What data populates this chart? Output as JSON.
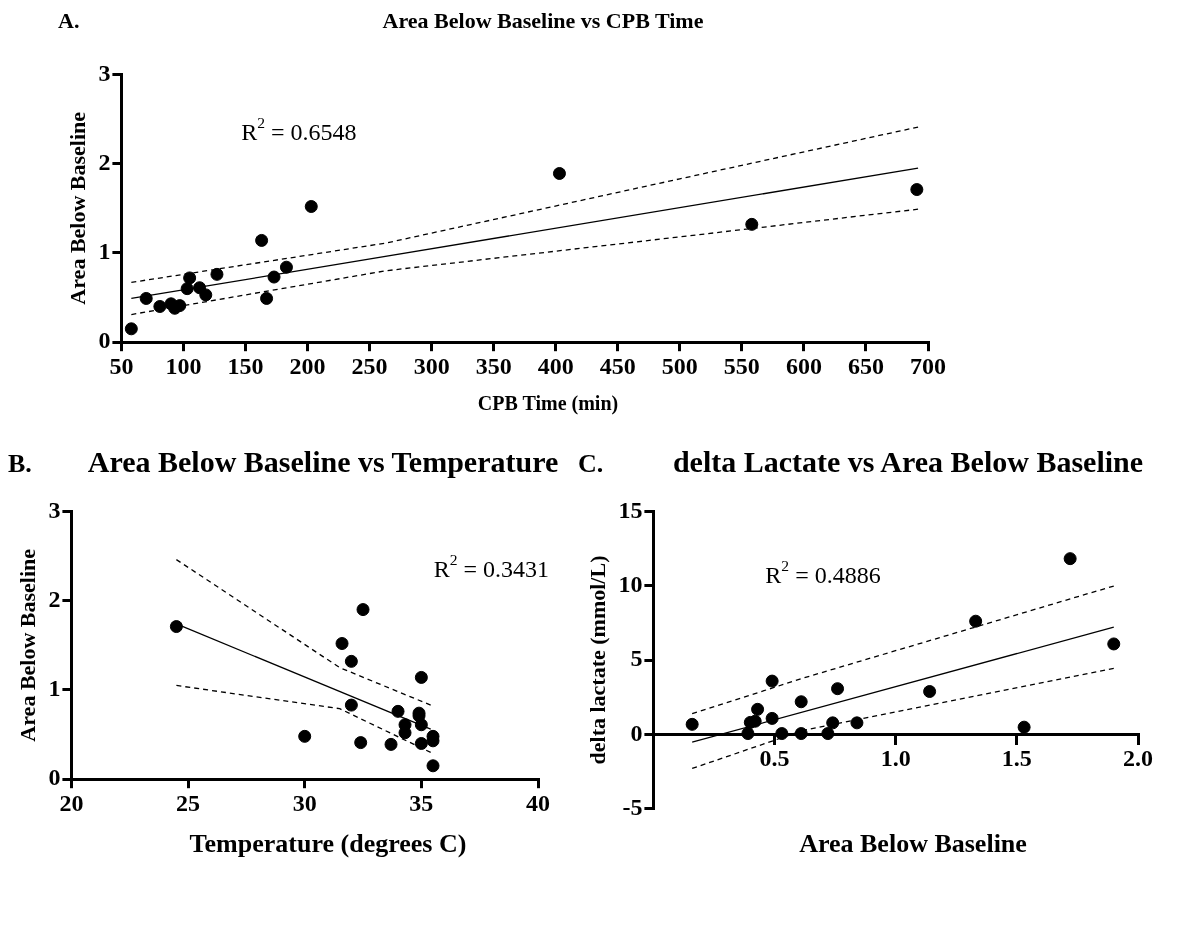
{
  "chart_data": [
    {
      "type": "scatter",
      "title": "Area Below Baseline vs CPB Time",
      "xlabel": "CPB Time (min)",
      "ylabel": "Area Below Baseline",
      "annotations": [
        "A.",
        "R$^{2}$ = 0.6548"
      ],
      "xlim": [
        50,
        700
      ],
      "xticks": [
        50,
        100,
        150,
        200,
        250,
        300,
        350,
        400,
        450,
        500,
        550,
        600,
        650,
        700
      ],
      "ylim": [
        0,
        3
      ],
      "yticks": [
        0,
        1,
        2,
        3
      ],
      "grid": false,
      "legend": false,
      "series": [
        {
          "type": "scatter",
          "marker": "circle",
          "color": "#000000",
          "x": [
            58,
            70,
            81,
            90,
            93,
            97,
            103,
            105,
            113,
            118,
            127,
            163,
            167,
            173,
            183,
            203,
            403,
            558,
            691
          ],
          "values": [
            0.15,
            0.49,
            0.4,
            0.43,
            0.38,
            0.41,
            0.6,
            0.72,
            0.61,
            0.53,
            0.76,
            1.14,
            0.49,
            0.73,
            0.84,
            1.52,
            1.89,
            1.32,
            1.71
          ]
        },
        {
          "type": "line",
          "marker": "none",
          "line_style": "solid",
          "color": "#000000",
          "x": [
            58,
            692
          ],
          "values": [
            0.49,
            1.95
          ]
        },
        {
          "type": "line",
          "marker": "none",
          "line_style": "dashed",
          "color": "#000000",
          "x": [
            58,
            263,
            500,
            692
          ],
          "values": [
            0.67,
            1.11,
            1.83,
            2.41
          ]
        },
        {
          "type": "line",
          "marker": "none",
          "line_style": "dashed",
          "color": "#000000",
          "x": [
            58,
            263,
            500,
            692
          ],
          "values": [
            0.31,
            0.8,
            1.18,
            1.49
          ]
        }
      ]
    },
    {
      "type": "scatter",
      "title": "Area Below Baseline vs Temperature",
      "xlabel": "Temperature (degrees C)",
      "ylabel": "Area Below Baseline",
      "annotations": [
        "B.",
        "R$^{2}$ = 0.3431"
      ],
      "xlim": [
        20,
        40
      ],
      "xticks": [
        20,
        25,
        30,
        35,
        40
      ],
      "ylim": [
        0,
        3
      ],
      "yticks": [
        0,
        1,
        2,
        3
      ],
      "grid": false,
      "legend": false,
      "series": [
        {
          "type": "scatter",
          "marker": "circle",
          "color": "#000000",
          "x": [
            24.5,
            30.0,
            31.6,
            32.0,
            32.5,
            32.0,
            32.4,
            33.7,
            34.0,
            34.3,
            34.3,
            34.9,
            34.9,
            35.0,
            35.0,
            35.0,
            35.5,
            35.5,
            35.5
          ],
          "values": [
            1.71,
            0.48,
            1.52,
            1.32,
            1.9,
            0.83,
            0.41,
            0.39,
            0.76,
            0.61,
            0.52,
            0.74,
            0.71,
            1.14,
            0.61,
            0.4,
            0.48,
            0.43,
            0.15
          ]
        },
        {
          "type": "line",
          "marker": "none",
          "line_style": "solid",
          "color": "#000000",
          "x": [
            24.5,
            35.4
          ],
          "values": [
            1.74,
            0.56
          ]
        },
        {
          "type": "line",
          "marker": "none",
          "line_style": "dashed",
          "color": "#000000",
          "x": [
            24.5,
            31.5,
            35.4
          ],
          "values": [
            2.46,
            1.25,
            0.83
          ]
        },
        {
          "type": "line",
          "marker": "none",
          "line_style": "dashed",
          "color": "#000000",
          "x": [
            24.5,
            31.5,
            35.4
          ],
          "values": [
            1.05,
            0.79,
            0.3
          ]
        }
      ]
    },
    {
      "type": "scatter",
      "title": "delta Lactate vs Area Below Baseline",
      "xlabel": "Area Below Baseline",
      "ylabel": "delta lactate (mmol/L)",
      "annotations": [
        "C.",
        "R$^{2}$ = 0.4886"
      ],
      "xlim": [
        0,
        2
      ],
      "xticks": [
        {
          "value": 0.5,
          "label": "0.5"
        },
        {
          "value": 1.0,
          "label": "1.0"
        },
        {
          "value": 1.5,
          "label": "1.5"
        },
        {
          "value": 2.0,
          "label": "2.0"
        }
      ],
      "ylim": [
        -5,
        15
      ],
      "yticks": [
        -5,
        0,
        5,
        10,
        15
      ],
      "grid": false,
      "legend": false,
      "series": [
        {
          "type": "scatter",
          "marker": "circle",
          "color": "#000000",
          "x": [
            0.16,
            0.39,
            0.4,
            0.42,
            0.43,
            0.49,
            0.49,
            0.53,
            0.61,
            0.61,
            0.72,
            0.74,
            0.76,
            0.84,
            1.14,
            1.33,
            1.53,
            1.72,
            1.9
          ],
          "values": [
            0.67,
            0.05,
            0.8,
            0.88,
            1.68,
            3.58,
            1.07,
            0.05,
            2.19,
            0.05,
            0.05,
            0.77,
            3.07,
            0.77,
            2.88,
            7.61,
            0.48,
            11.82,
            6.08
          ]
        },
        {
          "type": "line",
          "marker": "none",
          "line_style": "solid",
          "color": "#000000",
          "x": [
            0.16,
            1.9
          ],
          "values": [
            -0.53,
            7.21
          ]
        },
        {
          "type": "line",
          "marker": "none",
          "line_style": "dashed",
          "color": "#000000",
          "x": [
            0.16,
            0.62,
            1.9
          ],
          "values": [
            1.39,
            3.79,
            9.98
          ]
        },
        {
          "type": "line",
          "marker": "none",
          "line_style": "dashed",
          "color": "#000000",
          "x": [
            0.16,
            0.62,
            1.9
          ],
          "values": [
            -2.3,
            0.27,
            4.43
          ]
        }
      ]
    }
  ]
}
